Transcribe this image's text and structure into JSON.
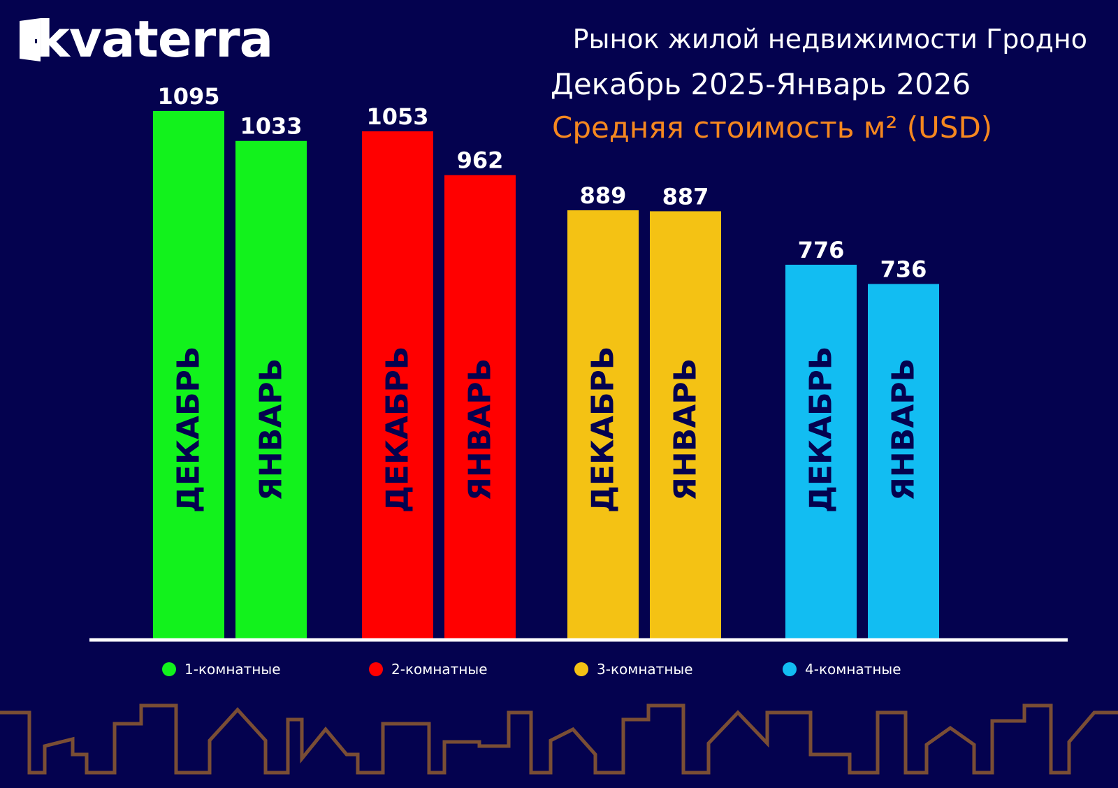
{
  "brand": {
    "name": "kvaterra"
  },
  "header": {
    "title": "Рынок жилой недвижимости Гродно",
    "period": "Декабрь 2025-Январь 2026",
    "subtitle": "Средняя стоимость м² (USD)"
  },
  "colors": {
    "background": "#04024f",
    "subtitle": "#f5871f",
    "month_label": "#04024f",
    "skyline": "#7a4e35",
    "axis": "#ffffff"
  },
  "chart_data": {
    "type": "bar",
    "title": "Средняя стоимость м² (USD)",
    "categories": [
      "ДЕКАБРЬ",
      "ЯНВАРЬ"
    ],
    "series": [
      {
        "name": "1-комнатные",
        "color": "#12f21c",
        "values": [
          1095,
          1033
        ]
      },
      {
        "name": "2-комнатные",
        "color": "#ff0000",
        "values": [
          1053,
          962
        ]
      },
      {
        "name": "3-комнатные",
        "color": "#f4c214",
        "values": [
          889,
          887
        ]
      },
      {
        "name": "4-комнатные",
        "color": "#12bdf2",
        "values": [
          776,
          736
        ]
      }
    ],
    "ylim": [
      0,
      1095
    ],
    "grid": false,
    "legend": "bottom"
  }
}
